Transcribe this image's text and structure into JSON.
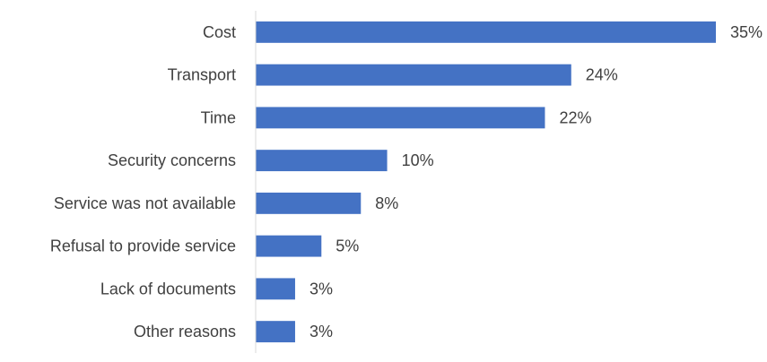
{
  "chart_data": {
    "type": "bar",
    "orientation": "horizontal",
    "categories": [
      "Cost",
      "Transport",
      "Time",
      "Security concerns",
      "Service was not available",
      "Refusal to provide service",
      "Lack of documents",
      "Other reasons"
    ],
    "values": [
      35,
      24,
      22,
      10,
      8,
      5,
      3,
      3
    ],
    "value_labels": [
      "35%",
      "24%",
      "22%",
      "10%",
      "8%",
      "5%",
      "3%",
      "3%"
    ],
    "title": "",
    "xlabel": "",
    "ylabel": "",
    "xlim": [
      0,
      35
    ],
    "grid": false,
    "legend": "none",
    "bar_color": "#4472C4",
    "axis_color": "#D9D9D9",
    "text_color": "#404040"
  }
}
